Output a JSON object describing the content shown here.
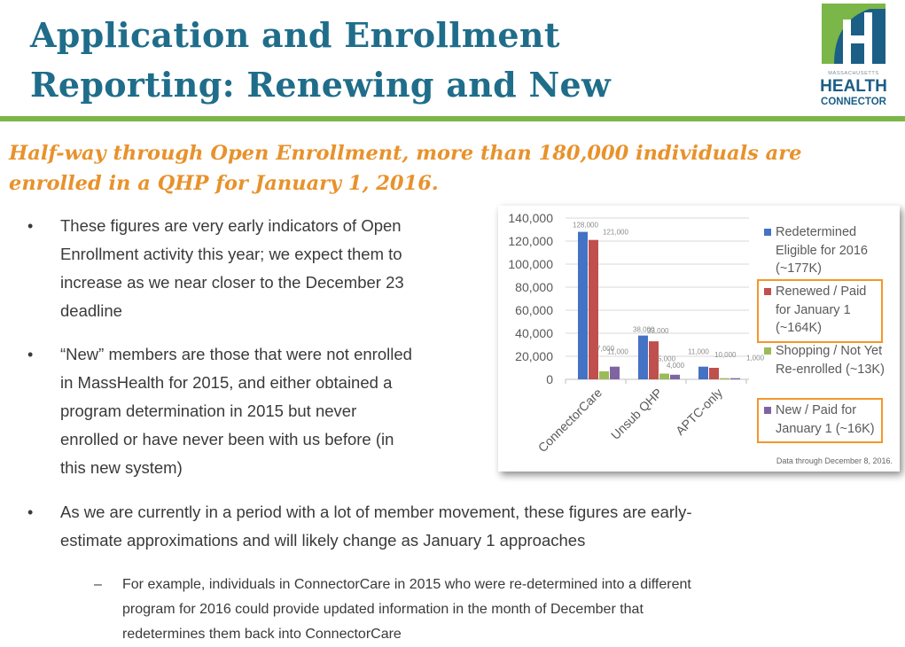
{
  "header": {
    "title_lines": [
      "Application and Enrollment",
      "Reporting: Renewing and New"
    ],
    "logo": {
      "small_text": "MASSACHUSETTS",
      "line1": "HEALTH",
      "line2": "CONNECTOR",
      "colors": {
        "green": "#7ab648",
        "blue": "#1b5e86"
      }
    }
  },
  "subtitle_lines": [
    "Half-way through Open Enrollment,  more than 180,000 individuals are",
    "enrolled in a QHP for January 1, 2016."
  ],
  "bullets": [
    {
      "lines": [
        "These figures are very early indicators of Open",
        "Enrollment activity this year; we expect them to",
        "increase as we near closer to the December 23",
        "deadline"
      ]
    },
    {
      "lines": [
        "“New” members are those that were not enrolled",
        "in MassHealth for 2015, and either obtained a",
        "program determination in 2015 but never",
        "enrolled or have never been with us before (in",
        "this new system)"
      ]
    },
    {
      "lines": [
        "As we are currently in a period with a lot of member movement, these figures are early-",
        "estimate approximations and will likely change as January 1 approaches"
      ]
    }
  ],
  "sub_bullet": {
    "dash": "–",
    "lines": [
      "For example, individuals in ConnectorCare in 2015 who were re-determined into a different",
      "program for 2016 could provide updated information in the month of December that",
      "redetermines them back into ConnectorCare"
    ]
  },
  "bullet_symbol": "•",
  "chart_data": {
    "type": "bar",
    "categories": [
      "ConnectorCare",
      "Unsub QHP",
      "APTC-only"
    ],
    "series": [
      {
        "name": "Redetermined Eligible for 2016 (~177K)",
        "legend_lines": [
          "Redetermined",
          "Eligible for 2016",
          "(~177K)"
        ],
        "color": "#4472c4",
        "values": [
          128000,
          38000,
          11000
        ],
        "labels": [
          "128,000",
          "38,000",
          "11,000"
        ]
      },
      {
        "name": "Renewed / Paid for January 1 (~164K)",
        "legend_lines": [
          "Renewed / Paid",
          "for January 1",
          "(~164K)"
        ],
        "color": "#c0504d",
        "values": [
          121000,
          33000,
          10000
        ],
        "labels": [
          "121,000",
          "33,000",
          "10,000"
        ],
        "highlighted": true
      },
      {
        "name": "Shopping / Not Yet Re-enrolled (~13K)",
        "legend_lines": [
          "Shopping / Not Yet",
          "Re-enrolled (~13K)"
        ],
        "color": "#9bbb59",
        "values": [
          7000,
          5000,
          1000
        ],
        "labels": [
          "7,000",
          "5,000",
          ""
        ]
      },
      {
        "name": "New / Paid for January 1 (~16K)",
        "legend_lines": [
          "New / Paid for",
          "January 1 (~16K)"
        ],
        "color": "#8064a2",
        "values": [
          11000,
          4000,
          1000
        ],
        "labels": [
          "11,000",
          "4,000",
          "1,000"
        ],
        "highlighted": true
      }
    ],
    "ylim": [
      0,
      140000
    ],
    "yticks": [
      "0",
      "20,000",
      "40,000",
      "60,000",
      "80,000",
      "100,000",
      "120,000",
      "140,000"
    ],
    "grid": true,
    "legend_position": "right",
    "highlight_color": "#f5962a",
    "footnote": "Data through December 8, 2016."
  }
}
